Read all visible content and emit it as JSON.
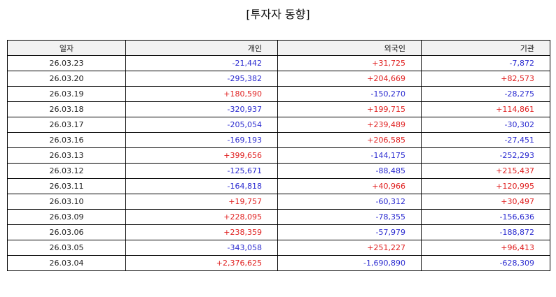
{
  "title": "[투자자 동향]",
  "columns": [
    "일자",
    "개인",
    "외국인",
    "기관"
  ],
  "colors": {
    "positive": "#e02020",
    "negative": "#2b2bd0"
  },
  "rows": [
    [
      "26.03.23",
      "-21,442",
      "+31,725",
      "-7,872"
    ],
    [
      "26.03.20",
      "-295,382",
      "+204,669",
      "+82,573"
    ],
    [
      "26.03.19",
      "+180,590",
      "-150,270",
      "-28,275"
    ],
    [
      "26.03.18",
      "-320,937",
      "+199,715",
      "+114,861"
    ],
    [
      "26.03.17",
      "-205,054",
      "+239,489",
      "-30,302"
    ],
    [
      "26.03.16",
      "-169,193",
      "+206,585",
      "-27,451"
    ],
    [
      "26.03.13",
      "+399,656",
      "-144,175",
      "-252,293"
    ],
    [
      "26.03.12",
      "-125,671",
      "-88,485",
      "+215,437"
    ],
    [
      "26.03.11",
      "-164,818",
      "+40,966",
      "+120,995"
    ],
    [
      "26.03.10",
      "+19,757",
      "-60,312",
      "+30,497"
    ],
    [
      "26.03.09",
      "+228,095",
      "-78,355",
      "-156,636"
    ],
    [
      "26.03.06",
      "+238,359",
      "-57,979",
      "-188,872"
    ],
    [
      "26.03.05",
      "-343,058",
      "+251,227",
      "+96,413"
    ],
    [
      "26.03.04",
      "+2,376,625",
      "-1,690,890",
      "-628,309"
    ]
  ]
}
